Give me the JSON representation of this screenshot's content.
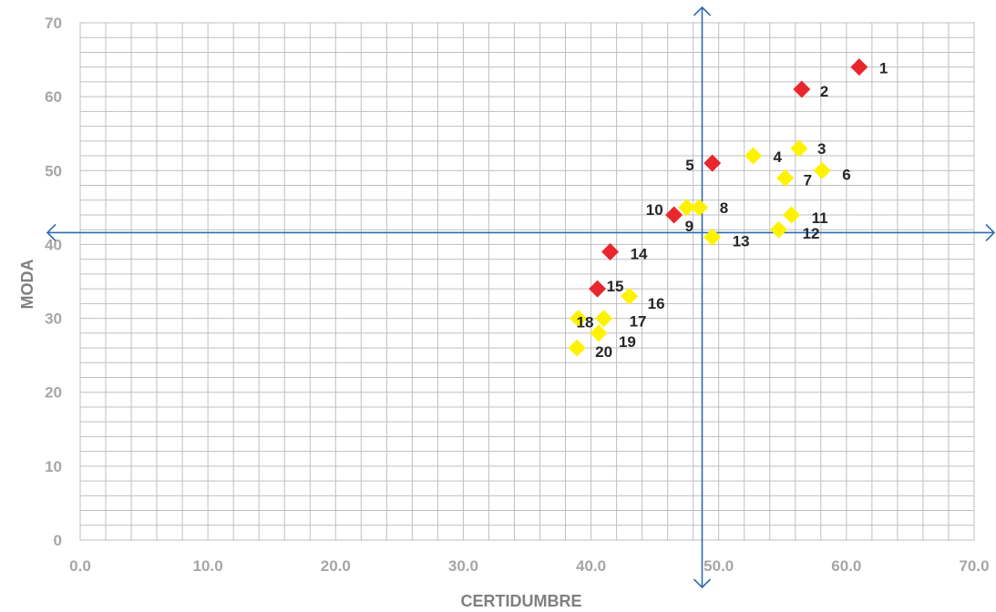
{
  "chart_data": {
    "type": "scatter",
    "title": "",
    "xlabel": "CERTIDUMBRE",
    "ylabel": "MODA",
    "xlim": [
      0,
      70
    ],
    "ylim": [
      0,
      70
    ],
    "x_ticks": [
      "0.0",
      "10.0",
      "20.0",
      "30.0",
      "40.0",
      "50.0",
      "60.0",
      "70.0"
    ],
    "y_ticks": [
      "0",
      "10",
      "20",
      "30",
      "40",
      "50",
      "60",
      "70"
    ],
    "grid": true,
    "quadrant_lines": {
      "x": 48.7,
      "y": 41.6
    },
    "colors": {
      "red": "#e8262e",
      "yellow": "#fff200",
      "axis": "#2e6bb0",
      "grid": "#bfbfbf"
    },
    "points": [
      {
        "label": "1",
        "x": 61.0,
        "y": 64.0,
        "color": "red"
      },
      {
        "label": "2",
        "x": 56.5,
        "y": 61.0,
        "color": "red"
      },
      {
        "label": "3",
        "x": 56.3,
        "y": 53.0,
        "color": "yellow"
      },
      {
        "label": "4",
        "x": 52.7,
        "y": 52.0,
        "color": "yellow"
      },
      {
        "label": "5",
        "x": 49.5,
        "y": 51.0,
        "color": "red"
      },
      {
        "label": "6",
        "x": 58.1,
        "y": 50.0,
        "color": "yellow"
      },
      {
        "label": "7",
        "x": 55.2,
        "y": 49.0,
        "color": "yellow"
      },
      {
        "label": "8",
        "x": 48.5,
        "y": 45.0,
        "color": "yellow"
      },
      {
        "label": "9",
        "x": 47.5,
        "y": 45.0,
        "color": "yellow"
      },
      {
        "label": "10",
        "x": 46.5,
        "y": 44.0,
        "color": "red"
      },
      {
        "label": "11",
        "x": 55.7,
        "y": 44.0,
        "color": "yellow"
      },
      {
        "label": "12",
        "x": 54.7,
        "y": 42.0,
        "color": "yellow"
      },
      {
        "label": "13",
        "x": 49.5,
        "y": 41.0,
        "color": "yellow"
      },
      {
        "label": "14",
        "x": 41.5,
        "y": 39.0,
        "color": "red"
      },
      {
        "label": "15",
        "x": 40.5,
        "y": 34.0,
        "color": "red"
      },
      {
        "label": "16",
        "x": 43.0,
        "y": 33.0,
        "color": "yellow"
      },
      {
        "label": "17",
        "x": 41.0,
        "y": 30.0,
        "color": "yellow"
      },
      {
        "label": "18",
        "x": 39.0,
        "y": 30.0,
        "color": "yellow"
      },
      {
        "label": "19",
        "x": 40.6,
        "y": 28.0,
        "color": "yellow"
      },
      {
        "label": "20",
        "x": 38.9,
        "y": 26.0,
        "color": "yellow"
      }
    ]
  }
}
